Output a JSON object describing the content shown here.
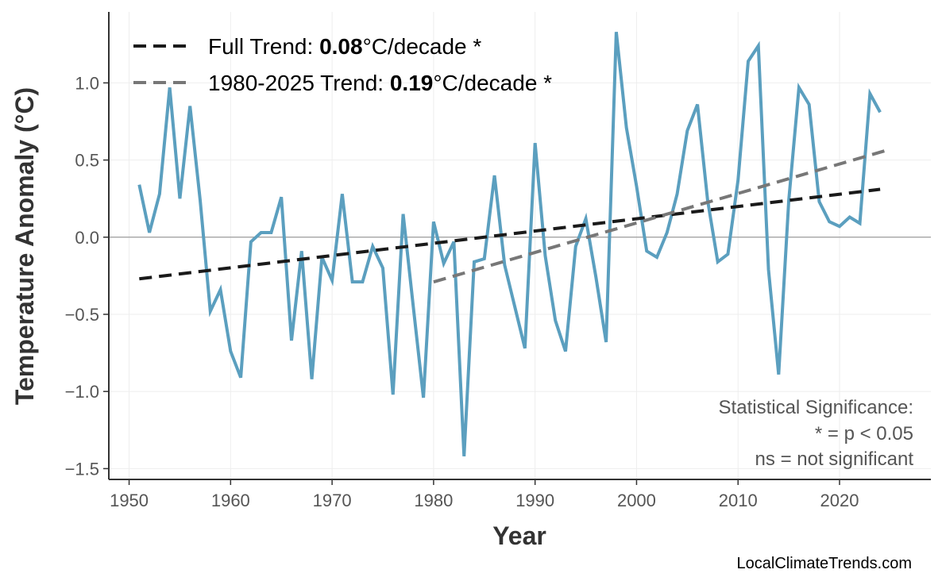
{
  "chart_data": {
    "type": "line",
    "xlabel": "Year",
    "ylabel": "Temperature Anomaly (°C)",
    "xlim": [
      1948,
      2029
    ],
    "ylim": [
      -1.57,
      1.46
    ],
    "xticks": [
      1950,
      1960,
      1970,
      1980,
      1990,
      2000,
      2010,
      2020
    ],
    "yticks": [
      -1.5,
      -1.0,
      -0.5,
      0.0,
      0.5,
      1.0
    ],
    "ytick_labels": [
      "−1.5",
      "−1.0",
      "−0.5",
      "0.0",
      "0.5",
      "1.0"
    ],
    "grid": true,
    "series": [
      {
        "color": "#5b9fbf",
        "x": [
          1951,
          1952,
          1953,
          1954,
          1955,
          1956,
          1957,
          1958,
          1959,
          1960,
          1961,
          1962,
          1963,
          1964,
          1965,
          1966,
          1967,
          1968,
          1969,
          1970,
          1971,
          1972,
          1973,
          1974,
          1975,
          1976,
          1977,
          1978,
          1979,
          1980,
          1981,
          1982,
          1983,
          1984,
          1985,
          1986,
          1987,
          1988,
          1989,
          1990,
          1991,
          1992,
          1993,
          1994,
          1995,
          1996,
          1997,
          1998,
          1999,
          2000,
          2001,
          2002,
          2003,
          2004,
          2005,
          2006,
          2007,
          2008,
          2009,
          2010,
          2011,
          2012,
          2013,
          2014,
          2015,
          2016,
          2017,
          2018,
          2019,
          2020,
          2021,
          2022,
          2023,
          2024
        ],
        "y": [
          0.34,
          0.03,
          0.28,
          0.97,
          0.25,
          0.85,
          0.24,
          -0.48,
          -0.34,
          -0.74,
          -0.91,
          -0.03,
          0.03,
          0.03,
          0.26,
          -0.67,
          -0.09,
          -0.92,
          -0.13,
          -0.28,
          0.28,
          -0.29,
          -0.29,
          -0.06,
          -0.2,
          -1.02,
          0.15,
          -0.45,
          -1.04,
          0.1,
          -0.17,
          -0.03,
          -1.42,
          -0.16,
          -0.14,
          0.4,
          -0.18,
          -0.45,
          -0.72,
          0.61,
          -0.12,
          -0.54,
          -0.74,
          -0.06,
          0.12,
          -0.26,
          -0.68,
          1.33,
          0.71,
          0.33,
          -0.09,
          -0.13,
          0.03,
          0.28,
          0.69,
          0.86,
          0.24,
          -0.16,
          -0.11,
          0.37,
          1.14,
          1.24,
          -0.21,
          -0.89,
          0.24,
          0.97,
          0.86,
          0.23,
          0.1,
          0.07,
          0.13,
          0.09,
          0.93,
          0.81
        ]
      }
    ],
    "trends": [
      {
        "name": "Full Trend",
        "label_prefix": "Full Trend: ",
        "value": "0.08",
        "unit": "°C/decade *",
        "color": "#1a1a1a",
        "x": [
          1951,
          2024
        ],
        "y": [
          -0.27,
          0.31
        ]
      },
      {
        "name": "1980-2025 Trend",
        "label_prefix": "1980-2025 Trend: ",
        "value": "0.19",
        "unit": "°C/decade *",
        "color": "#777777",
        "x": [
          1980,
          2025
        ],
        "y": [
          -0.29,
          0.57
        ]
      }
    ],
    "legend_position": "top-left",
    "annotation": [
      "Statistical Significance:",
      "* = p < 0.05",
      "ns = not significant"
    ],
    "credit": "LocalClimateTrends.com"
  }
}
